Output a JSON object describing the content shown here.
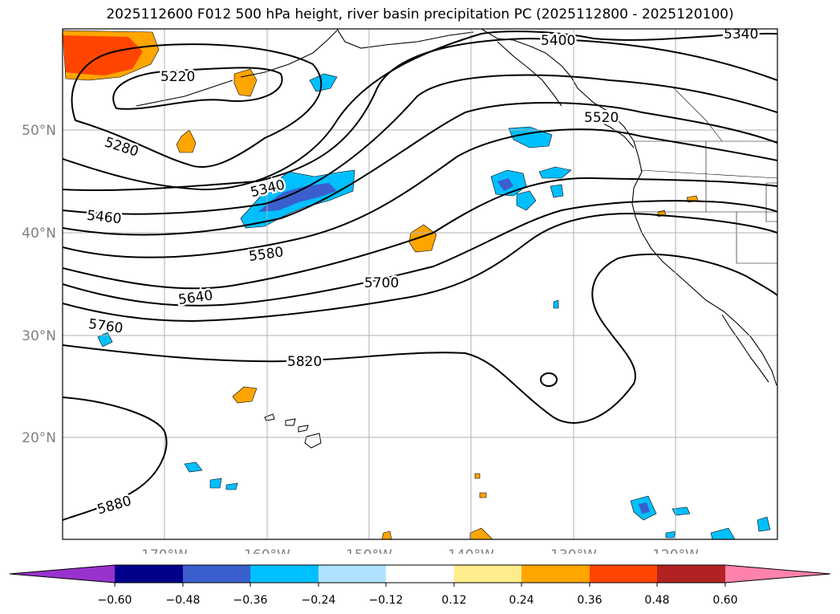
{
  "title": "2025112600 F012 500 hPa height, river basin precipitation PC (2025112800 - 2025120100)",
  "map": {
    "lon_ticks": [
      "170°W",
      "160°W",
      "150°W",
      "140°W",
      "130°W",
      "120°W"
    ],
    "lat_ticks": [
      "50°N",
      "40°N",
      "30°N",
      "20°N"
    ],
    "grid": true
  },
  "contour_labels": [
    {
      "text": "5220"
    },
    {
      "text": "5280"
    },
    {
      "text": "5340"
    },
    {
      "text": "5340"
    },
    {
      "text": "5400"
    },
    {
      "text": "5460"
    },
    {
      "text": "5520"
    },
    {
      "text": "5580"
    },
    {
      "text": "5640"
    },
    {
      "text": "5700"
    },
    {
      "text": "5760"
    },
    {
      "text": "5820"
    },
    {
      "text": "5880"
    }
  ],
  "colorbar": {
    "ticks": [
      "−0.60",
      "−0.48",
      "−0.36",
      "−0.24",
      "−0.12",
      "0.12",
      "0.24",
      "0.36",
      "0.48",
      "0.60"
    ],
    "colors": [
      "#9932cc",
      "#00008b",
      "#3a5fcd",
      "#00bfff",
      "#b0e2ff",
      "#ffffff",
      "#ffec8b",
      "#ffa500",
      "#ff4500",
      "#b22222",
      "#ff82ab"
    ]
  },
  "colors": {
    "coast": "#000000",
    "contour": "#000000",
    "grid": "#b0b0b0",
    "tick_label": "#808080"
  }
}
